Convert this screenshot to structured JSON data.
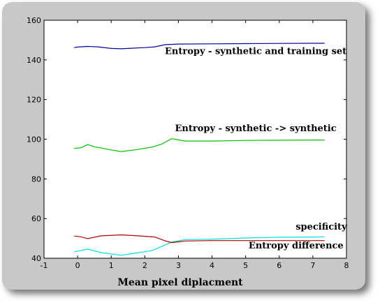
{
  "chart_data": {
    "type": "line",
    "xlabel": "Mean pixel diplacment",
    "ylabel": "",
    "title": "",
    "xlim": [
      -1,
      8
    ],
    "ylim": [
      40,
      160
    ],
    "xticks": [
      -1,
      0,
      1,
      2,
      3,
      4,
      5,
      6,
      7,
      8
    ],
    "yticks": [
      40,
      60,
      80,
      100,
      120,
      140,
      160
    ],
    "grid": false,
    "series": [
      {
        "name": "Entropy - synthetic and training set",
        "color": "#0000a0",
        "x": [
          -0.1,
          0.0,
          0.3,
          0.6,
          1.0,
          1.3,
          1.6,
          2.0,
          2.3,
          2.6,
          3.0,
          4.0,
          5.0,
          6.0,
          7.0,
          7.35
        ],
        "y": [
          146.2,
          146.5,
          146.8,
          146.6,
          145.8,
          145.6,
          145.9,
          146.2,
          146.6,
          147.7,
          148.0,
          148.1,
          148.2,
          148.3,
          148.4,
          148.4
        ]
      },
      {
        "name": "Entropy - synthetic -> synthetic",
        "color": "#00c000",
        "x": [
          -0.1,
          0.1,
          0.3,
          0.5,
          1.0,
          1.3,
          1.7,
          2.2,
          2.5,
          2.8,
          3.2,
          4.0,
          5.0,
          6.0,
          7.0,
          7.35
        ],
        "y": [
          95.4,
          95.7,
          97.3,
          96.2,
          94.6,
          93.8,
          94.6,
          96.0,
          97.5,
          100.3,
          99.1,
          99.1,
          99.4,
          99.5,
          99.6,
          99.6
        ]
      },
      {
        "name": "specificity",
        "color": "#00e0e0",
        "x": [
          -0.1,
          0.3,
          0.7,
          1.3,
          1.7,
          2.2,
          2.5,
          2.8,
          3.2,
          4.0,
          5.0,
          6.0,
          7.0,
          7.35
        ],
        "y": [
          43.2,
          44.6,
          42.8,
          41.5,
          42.5,
          43.8,
          45.9,
          48.2,
          49.4,
          49.6,
          50.2,
          50.6,
          50.7,
          50.8
        ]
      },
      {
        "name": "Entropy difference",
        "color": "#b00000",
        "x": [
          -0.1,
          0.1,
          0.3,
          0.7,
          1.3,
          1.8,
          2.3,
          2.6,
          2.8,
          3.2,
          4.0,
          5.0,
          6.0,
          7.0,
          7.35
        ],
        "y": [
          51.2,
          50.8,
          49.9,
          51.3,
          51.8,
          51.3,
          50.7,
          48.8,
          47.9,
          48.7,
          48.9,
          48.9,
          48.9,
          48.9,
          48.9
        ]
      }
    ],
    "annotations": [
      {
        "text": "Entropy - synthetic and training set",
        "x": 5.3,
        "y": 143
      },
      {
        "text": "Entropy - synthetic -> synthetic",
        "x": 5.3,
        "y": 104
      },
      {
        "text": "specificity",
        "x": 7.25,
        "y": 54.5
      },
      {
        "text": "Entropy difference",
        "x": 6.5,
        "y": 45
      }
    ]
  }
}
